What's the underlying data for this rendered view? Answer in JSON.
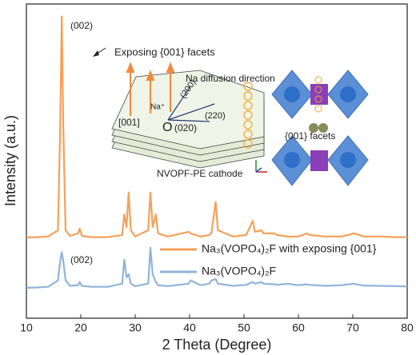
{
  "chart_data": {
    "type": "line",
    "x_label": "2 Theta (Degree)",
    "y_label": "Intensity (a.u.)",
    "xlim": [
      10,
      80
    ],
    "xticks": [
      10,
      20,
      30,
      40,
      50,
      60,
      70,
      80
    ],
    "ylim": [
      0,
      100
    ],
    "legend": "center",
    "x": [
      10,
      12,
      14,
      15.8,
      16.2,
      16.5,
      16.8,
      17.2,
      18,
      19.5,
      19.8,
      20.2,
      22,
      25,
      27.6,
      28,
      28.4,
      28.8,
      29.2,
      30,
      32.4,
      32.8,
      33.2,
      33.8,
      34.2,
      36,
      39.8,
      40.2,
      42,
      43.6,
      44,
      44.8,
      45.2,
      48,
      50.4,
      51.6,
      52,
      53.2,
      53.6,
      55.6,
      56,
      58,
      60,
      61.6,
      62,
      65,
      68,
      70.2,
      70.6,
      72,
      75,
      78,
      80
    ],
    "series": [
      {
        "name": "Na₃(VOPO₄)₂F with exposing {001}",
        "color": "#f5a05a",
        "values": [
          25.7,
          25.8,
          26,
          28,
          60,
          96,
          60,
          28,
          26.2,
          27,
          28.5,
          26.2,
          25.8,
          25.8,
          26.5,
          33,
          29,
          40,
          28,
          26,
          28,
          40,
          29,
          33,
          27,
          26,
          27.5,
          27,
          26,
          26.5,
          27,
          37,
          28,
          26,
          26.5,
          31,
          27.5,
          28,
          27,
          27,
          26.5,
          26,
          26,
          27,
          26.5,
          26,
          26,
          27,
          26.8,
          26,
          26,
          25.8,
          25.8
        ]
      },
      {
        "name": "Na₃(VOPO₄)₂F",
        "color": "#8fb4da",
        "values": [
          9.7,
          9.8,
          10,
          12,
          18,
          21,
          18,
          12,
          10.3,
          10.5,
          11.5,
          10.3,
          10,
          10,
          11,
          18.6,
          13,
          14,
          11,
          10.2,
          11,
          22.4,
          14,
          11.5,
          10.5,
          10.2,
          11,
          12,
          10.5,
          11,
          12,
          12.5,
          11,
          10.3,
          10.6,
          11.5,
          11,
          11.5,
          11,
          10.8,
          10.6,
          11,
          10.5,
          10.8,
          10.6,
          10.3,
          10.5,
          11,
          10.8,
          10.4,
          10.3,
          10.2,
          10.1
        ]
      }
    ],
    "annotations": [
      "(002)",
      "Exposing {001} facets",
      "Na diffusion  direction",
      "[001]",
      "Na⁺",
      "(200)",
      "(220)",
      "O",
      "(020)",
      "NVOPF-PE cathode",
      "{001} facets",
      "(002)"
    ]
  }
}
